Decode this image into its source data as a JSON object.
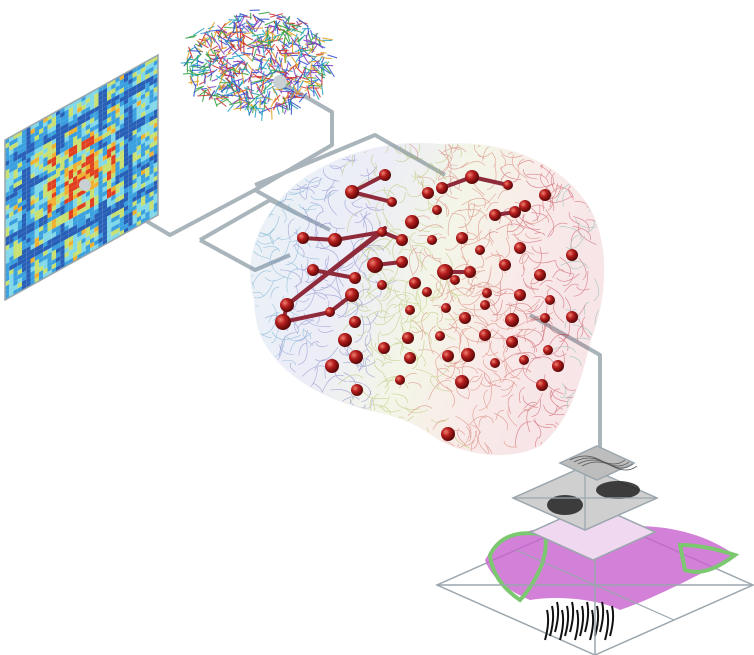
{
  "colors": {
    "background": "#ffffff",
    "connector": "#a9b4bb",
    "node": "#b01c1c",
    "node_highlight": "#e86a5a",
    "edge": "#8e2a3a",
    "matrix_low": "#2f7fd0",
    "matrix_mid": "#7fd0e8",
    "matrix_high": "#f0a020",
    "histology_stain": "#c860d0",
    "histology_green": "#7cc870",
    "frame": "#9aa6ad"
  },
  "panels": {
    "matrix": "connectivity-matrix",
    "tractography": "tractography-brain",
    "mesh": "brain-mesh-network",
    "histology": "histology-layer-stack"
  }
}
